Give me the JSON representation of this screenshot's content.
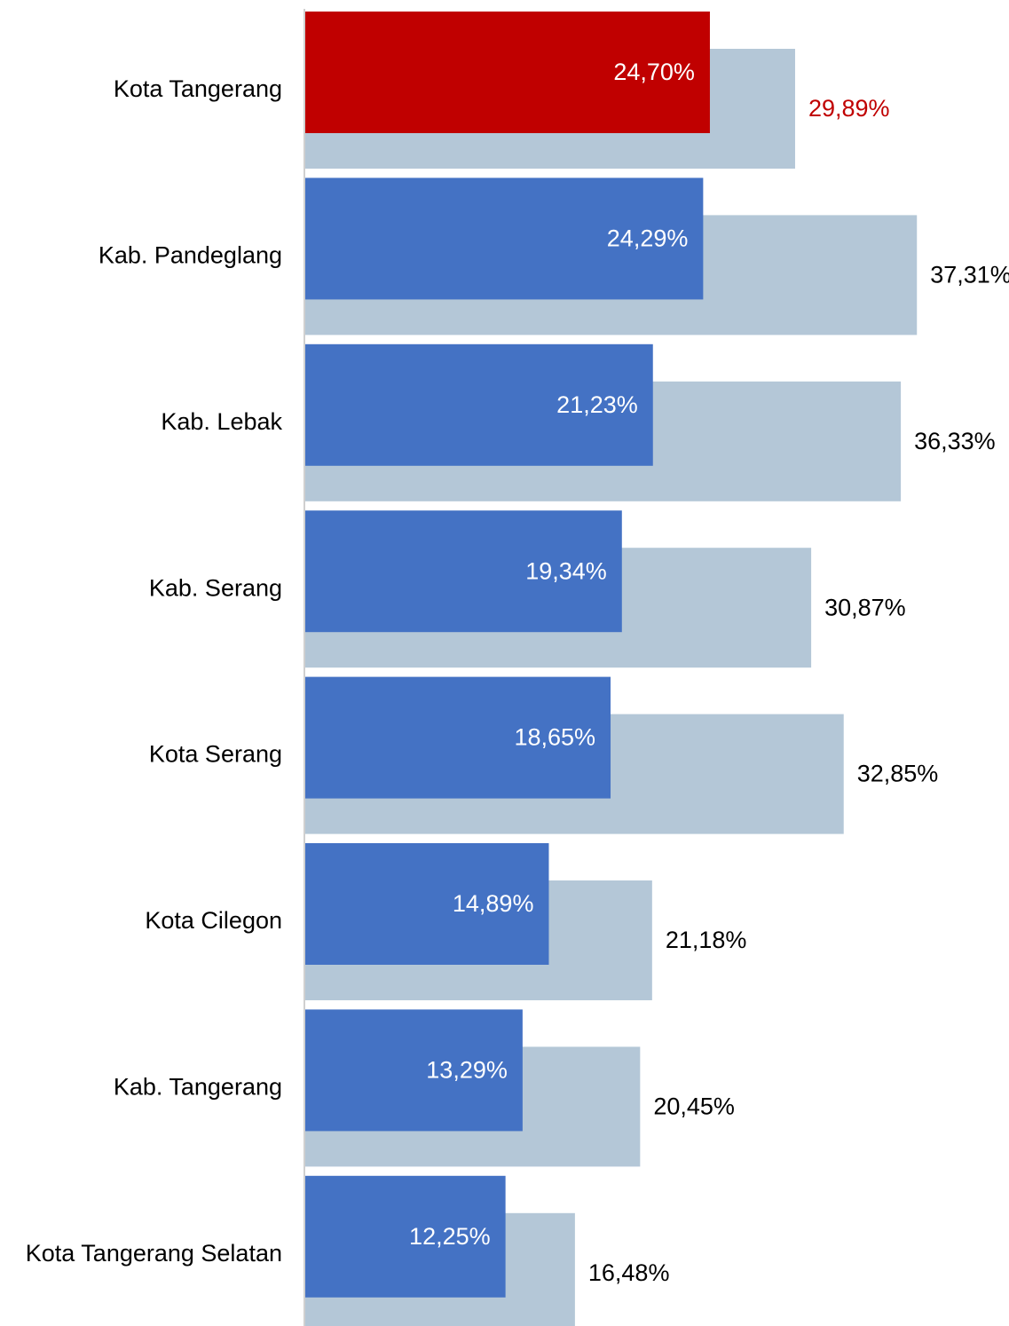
{
  "chart_data": {
    "type": "overlap-hbar",
    "categories": [
      "Kota Tangerang",
      "Kab. Pandeglang",
      "Kab. Lebak",
      "Kab. Serang",
      "Kota Serang",
      "Kota Cilegon",
      "Kab. Tangerang",
      "Kota Tangerang Selatan"
    ],
    "series": [
      {
        "colors": [
          "#c00000",
          "#4472c4",
          "#4472c4",
          "#4472c4",
          "#4472c4",
          "#4472c4",
          "#4472c4",
          "#4472c4"
        ],
        "label_color": "#ffffff",
        "values": [
          24.7,
          24.29,
          21.23,
          19.34,
          18.65,
          14.89,
          13.29,
          12.25
        ],
        "value_labels": [
          "24,70%",
          "24,29%",
          "21,23%",
          "19,34%",
          "18,65%",
          "14,89%",
          "13,29%",
          "12,25%"
        ]
      },
      {
        "color": "#b4c7d7",
        "label_colors": [
          "#c00000",
          "#000000",
          "#000000",
          "#000000",
          "#000000",
          "#000000",
          "#000000",
          "#000000"
        ],
        "values": [
          29.89,
          37.31,
          36.33,
          30.87,
          32.85,
          21.18,
          20.45,
          16.48
        ],
        "value_labels": [
          "29,89%",
          "37,31%",
          "36,33%",
          "30,87%",
          "32,85%",
          "21,18%",
          "20,45%",
          "16,48%"
        ]
      }
    ],
    "xlim": [
      0,
      40
    ]
  }
}
